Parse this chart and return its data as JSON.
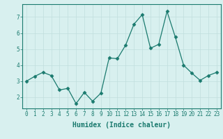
{
  "x": [
    0,
    1,
    2,
    3,
    4,
    5,
    6,
    7,
    8,
    9,
    10,
    11,
    12,
    13,
    14,
    15,
    16,
    17,
    18,
    19,
    20,
    21,
    22,
    23
  ],
  "y": [
    3.0,
    3.3,
    3.55,
    3.35,
    2.45,
    2.55,
    1.6,
    2.3,
    1.75,
    2.25,
    4.45,
    4.4,
    5.25,
    6.55,
    7.15,
    5.05,
    5.3,
    7.35,
    5.75,
    4.0,
    3.5,
    3.05,
    3.35,
    3.55
  ],
  "line_color": "#1a7a6e",
  "marker": "D",
  "marker_size": 2.5,
  "bg_color": "#d8f0ef",
  "grid_color": "#c0dedd",
  "xlabel": "Humidex (Indice chaleur)",
  "ylim": [
    1.3,
    7.8
  ],
  "xlim": [
    -0.5,
    23.5
  ],
  "yticks": [
    2,
    3,
    4,
    5,
    6,
    7
  ],
  "xticks": [
    0,
    1,
    2,
    3,
    4,
    5,
    6,
    7,
    8,
    9,
    10,
    11,
    12,
    13,
    14,
    15,
    16,
    17,
    18,
    19,
    20,
    21,
    22,
    23
  ],
  "tick_label_size": 5.5,
  "xlabel_size": 7.0,
  "axis_color": "#1a7a6e",
  "spine_color": "#1a7a6e"
}
